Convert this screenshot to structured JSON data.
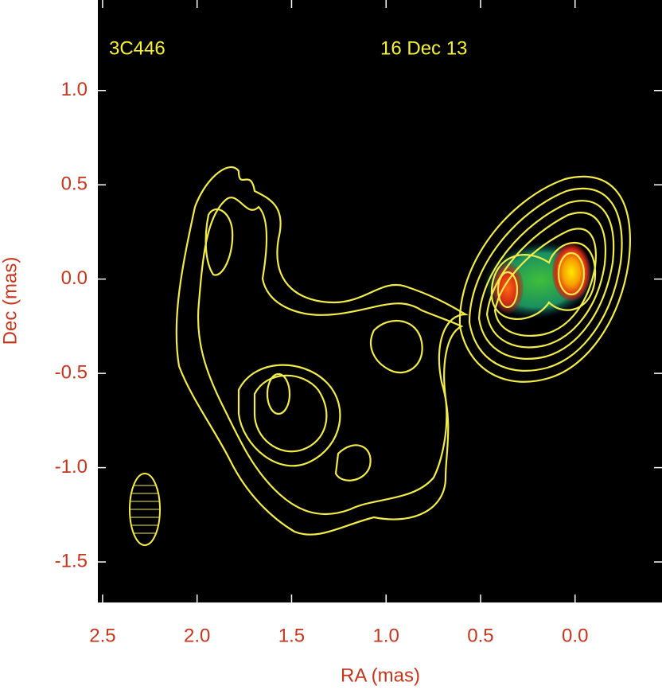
{
  "chart_data": {
    "type": "image",
    "annotations": [
      "3C446",
      "16 Dec 13"
    ],
    "xlabel": "RA (mas)",
    "ylabel": "Dec (mas)",
    "xlim": [
      2.525,
      -0.46
    ],
    "ylim": [
      -1.715,
      1.48
    ],
    "xticks": [
      {
        "value": 2.5,
        "label": "2.5"
      },
      {
        "value": 2.0,
        "label": "2.0"
      },
      {
        "value": 1.5,
        "label": "1.5"
      },
      {
        "value": 1.0,
        "label": "1.0"
      },
      {
        "value": 0.5,
        "label": "0.5"
      },
      {
        "value": 0.0,
        "label": "0.0"
      }
    ],
    "yticks": [
      {
        "value": 1.0,
        "label": "1.0"
      },
      {
        "value": 0.5,
        "label": "0.5"
      },
      {
        "value": 0.0,
        "label": "0.0"
      },
      {
        "value": -0.5,
        "label": "-0.5"
      },
      {
        "value": -1.0,
        "label": "-1.0"
      },
      {
        "value": -1.5,
        "label": "-1.5"
      }
    ]
  }
}
